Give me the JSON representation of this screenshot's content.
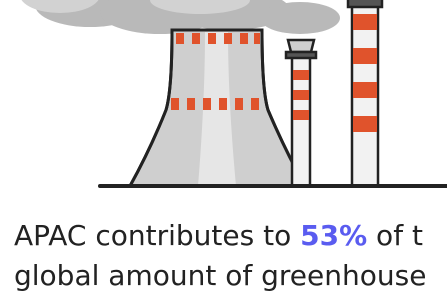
{
  "text": {
    "line1_start": "APAC contributes to ",
    "highlight": "53%",
    "line1_end": " of t",
    "line2": "global amount of greenhouse"
  }
}
